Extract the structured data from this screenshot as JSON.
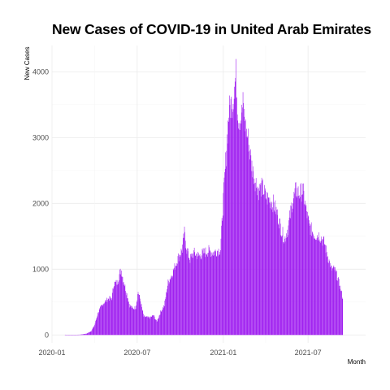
{
  "chart_data": {
    "type": "bar",
    "title": "New Cases of COVID-19 in United Arab Emirates",
    "xlabel": "Month",
    "ylabel": "New Cases",
    "x_ticks": [
      "2020-01",
      "2020-07",
      "2021-01",
      "2021-07"
    ],
    "y_ticks": [
      0,
      1000,
      2000,
      3000,
      4000
    ],
    "ylim": [
      -120,
      4400
    ],
    "xlim": [
      "2020-01-01",
      "2021-11-01"
    ],
    "grid": true,
    "bar_color": "#a020f0",
    "series": [
      {
        "frequency": "daily",
        "breakpoints": [
          [
            "2020-01-29",
            4
          ],
          [
            "2020-02-15",
            2
          ],
          [
            "2020-03-01",
            5
          ],
          [
            "2020-03-15",
            20
          ],
          [
            "2020-03-25",
            60
          ],
          [
            "2020-04-01",
            150
          ],
          [
            "2020-04-08",
            330
          ],
          [
            "2020-04-15",
            430
          ],
          [
            "2020-04-22",
            500
          ],
          [
            "2020-04-30",
            550
          ],
          [
            "2020-05-08",
            560
          ],
          [
            "2020-05-12",
            780
          ],
          [
            "2020-05-20",
            800
          ],
          [
            "2020-05-25",
            950
          ],
          [
            "2020-05-28",
            980
          ],
          [
            "2020-06-01",
            850
          ],
          [
            "2020-06-08",
            650
          ],
          [
            "2020-06-15",
            450
          ],
          [
            "2020-06-22",
            400
          ],
          [
            "2020-06-28",
            420
          ],
          [
            "2020-07-03",
            660
          ],
          [
            "2020-07-07",
            550
          ],
          [
            "2020-07-15",
            280
          ],
          [
            "2020-07-28",
            260
          ],
          [
            "2020-08-05",
            300
          ],
          [
            "2020-08-12",
            200
          ],
          [
            "2020-08-20",
            350
          ],
          [
            "2020-08-28",
            450
          ],
          [
            "2020-09-05",
            800
          ],
          [
            "2020-09-12",
            900
          ],
          [
            "2020-09-20",
            1050
          ],
          [
            "2020-09-28",
            1200
          ],
          [
            "2020-10-05",
            1300
          ],
          [
            "2020-10-10",
            1550
          ],
          [
            "2020-10-15",
            1300
          ],
          [
            "2020-10-22",
            1150
          ],
          [
            "2020-10-30",
            1250
          ],
          [
            "2020-11-10",
            1200
          ],
          [
            "2020-11-20",
            1250
          ],
          [
            "2020-12-01",
            1280
          ],
          [
            "2020-12-10",
            1250
          ],
          [
            "2020-12-18",
            1280
          ],
          [
            "2020-12-26",
            1300
          ],
          [
            "2020-12-31",
            1950
          ],
          [
            "2021-01-05",
            2500
          ],
          [
            "2021-01-09",
            3000
          ],
          [
            "2021-01-13",
            3400
          ],
          [
            "2021-01-17",
            3500
          ],
          [
            "2021-01-22",
            3600
          ],
          [
            "2021-01-28",
            3950
          ],
          [
            "2021-02-02",
            3300
          ],
          [
            "2021-02-08",
            3300
          ],
          [
            "2021-02-12",
            3500
          ],
          [
            "2021-02-18",
            3150
          ],
          [
            "2021-02-24",
            2950
          ],
          [
            "2021-03-02",
            2600
          ],
          [
            "2021-03-10",
            2350
          ],
          [
            "2021-03-18",
            2200
          ],
          [
            "2021-03-25",
            2250
          ],
          [
            "2021-04-02",
            2100
          ],
          [
            "2021-04-10",
            2050
          ],
          [
            "2021-04-18",
            2000
          ],
          [
            "2021-04-26",
            1850
          ],
          [
            "2021-05-05",
            1600
          ],
          [
            "2021-05-12",
            1450
          ],
          [
            "2021-05-20",
            1650
          ],
          [
            "2021-05-28",
            2000
          ],
          [
            "2021-06-05",
            2200
          ],
          [
            "2021-06-13",
            2150
          ],
          [
            "2021-06-20",
            2200
          ],
          [
            "2021-06-27",
            1900
          ],
          [
            "2021-07-04",
            1650
          ],
          [
            "2021-07-15",
            1520
          ],
          [
            "2021-07-25",
            1520
          ],
          [
            "2021-08-05",
            1400
          ],
          [
            "2021-08-12",
            1200
          ],
          [
            "2021-08-20",
            1000
          ],
          [
            "2021-08-27",
            1000
          ],
          [
            "2021-09-03",
            850
          ],
          [
            "2021-09-08",
            720
          ],
          [
            "2021-09-13",
            570
          ]
        ]
      }
    ]
  }
}
